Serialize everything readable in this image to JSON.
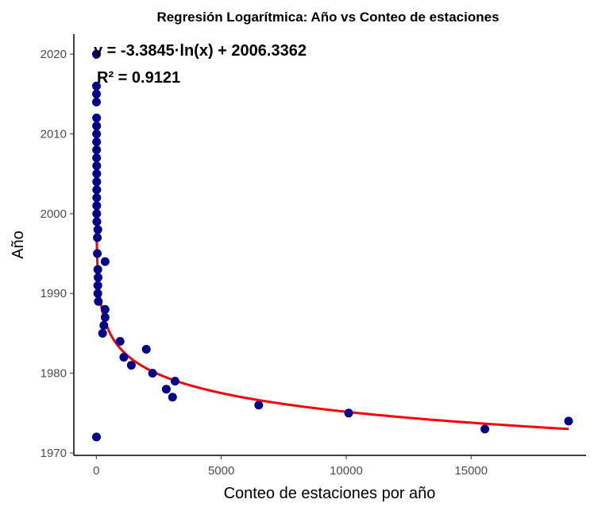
{
  "chart_data": {
    "type": "scatter",
    "title": "Regresión Logarítmica: Año vs Conteo de estaciones",
    "xlabel": "Conteo de estaciones por año",
    "ylabel": "Año",
    "xlim": [
      -900,
      19600
    ],
    "ylim": [
      1969.7,
      2022.5
    ],
    "x_ticks": [
      0,
      5000,
      10000,
      15000
    ],
    "y_ticks": [
      1970,
      1980,
      1990,
      2000,
      2010,
      2020
    ],
    "x_tick_labels": [
      "0",
      "5000",
      "10000",
      "15000"
    ],
    "y_tick_labels": [
      "1970",
      "1980",
      "1990",
      "2000",
      "2010",
      "2020"
    ],
    "grid": false,
    "point_color": "#00008B",
    "fit_color": "#FF0000",
    "annotations": [
      "y = -3.3845·ln(x) + 2006.3362",
      "R² = 0.9121"
    ],
    "fit": {
      "a": -3.3845,
      "b": 2006.3362,
      "x_range": [
        1,
        18900
      ]
    },
    "points": [
      {
        "x": 5,
        "y": 2020
      },
      {
        "x": 5,
        "y": 2016
      },
      {
        "x": 5,
        "y": 2015
      },
      {
        "x": 5,
        "y": 2014
      },
      {
        "x": 10,
        "y": 2012
      },
      {
        "x": 10,
        "y": 2011
      },
      {
        "x": 10,
        "y": 2010
      },
      {
        "x": 10,
        "y": 2009
      },
      {
        "x": 10,
        "y": 2008
      },
      {
        "x": 10,
        "y": 2007
      },
      {
        "x": 15,
        "y": 2006
      },
      {
        "x": 15,
        "y": 2005
      },
      {
        "x": 15,
        "y": 2004
      },
      {
        "x": 15,
        "y": 2003
      },
      {
        "x": 15,
        "y": 2002
      },
      {
        "x": 15,
        "y": 2001
      },
      {
        "x": 15,
        "y": 2000
      },
      {
        "x": 20,
        "y": 1999
      },
      {
        "x": 60,
        "y": 1998
      },
      {
        "x": 40,
        "y": 1997
      },
      {
        "x": 40,
        "y": 1995
      },
      {
        "x": 350,
        "y": 1994
      },
      {
        "x": 60,
        "y": 1993
      },
      {
        "x": 70,
        "y": 1992
      },
      {
        "x": 60,
        "y": 1991
      },
      {
        "x": 60,
        "y": 1990
      },
      {
        "x": 80,
        "y": 1989
      },
      {
        "x": 350,
        "y": 1988
      },
      {
        "x": 350,
        "y": 1987
      },
      {
        "x": 300,
        "y": 1986
      },
      {
        "x": 250,
        "y": 1985
      },
      {
        "x": 950,
        "y": 1984
      },
      {
        "x": 2000,
        "y": 1983
      },
      {
        "x": 1100,
        "y": 1982
      },
      {
        "x": 1400,
        "y": 1981
      },
      {
        "x": 2250,
        "y": 1980
      },
      {
        "x": 3150,
        "y": 1979
      },
      {
        "x": 2800,
        "y": 1978
      },
      {
        "x": 3050,
        "y": 1977
      },
      {
        "x": 6500,
        "y": 1976
      },
      {
        "x": 10100,
        "y": 1975
      },
      {
        "x": 18900,
        "y": 1974
      },
      {
        "x": 15550,
        "y": 1973
      },
      {
        "x": 5,
        "y": 1972
      }
    ]
  }
}
